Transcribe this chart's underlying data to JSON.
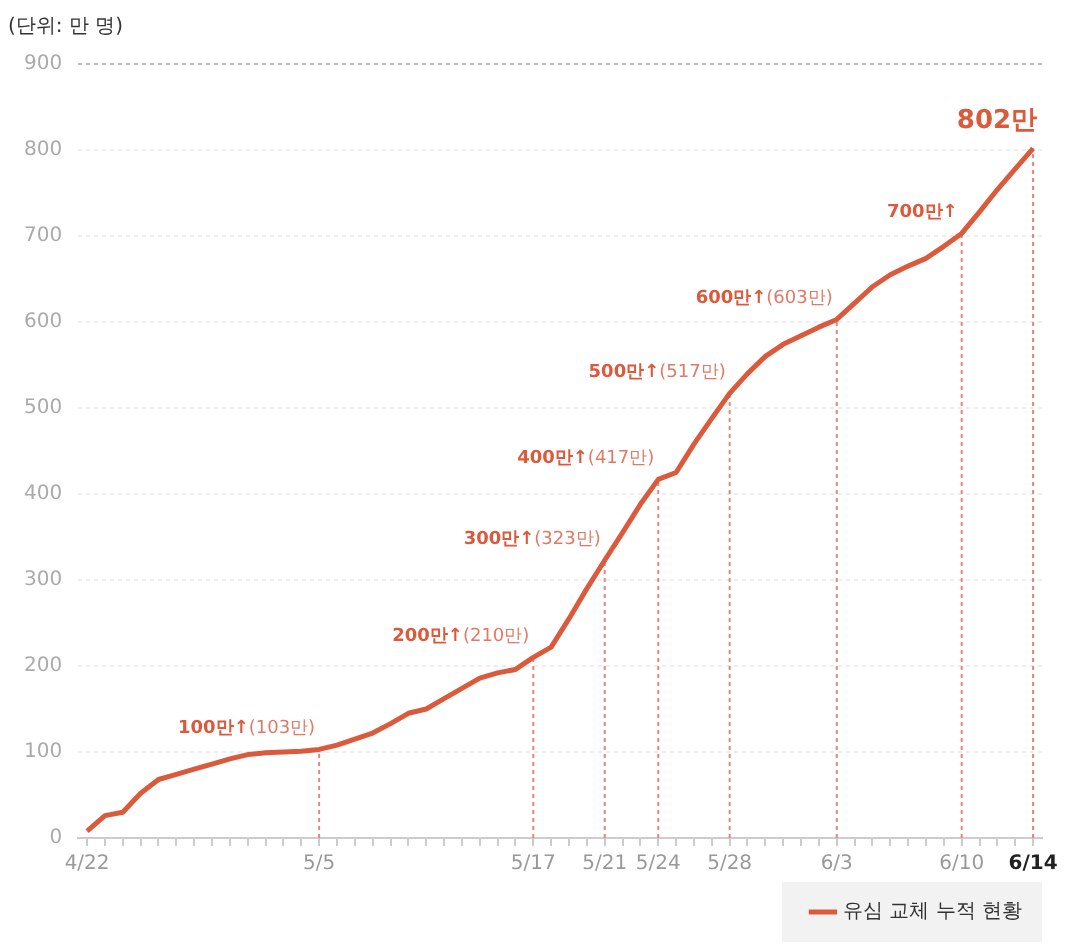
{
  "chart_data": {
    "type": "line",
    "ylabel": "(단위: 만 명)",
    "categories": [
      "4/22",
      null,
      null,
      null,
      null,
      null,
      null,
      null,
      null,
      null,
      null,
      null,
      null,
      "5/5",
      null,
      null,
      null,
      null,
      null,
      null,
      null,
      null,
      null,
      null,
      null,
      "5/17",
      null,
      null,
      null,
      "5/21",
      null,
      null,
      "5/24",
      null,
      null,
      null,
      "5/28",
      null,
      null,
      null,
      null,
      null,
      "6/3",
      null,
      null,
      null,
      null,
      null,
      null,
      "6/10",
      null,
      null,
      null,
      "6/14"
    ],
    "series": [
      {
        "name": "유심 교체 누적 현황",
        "color": "#dc5a3c",
        "values": [
          8,
          26,
          30,
          52,
          68,
          74,
          80,
          86,
          92,
          97,
          99,
          100,
          101,
          103,
          108,
          115,
          122,
          133,
          145,
          150,
          162,
          174,
          186,
          192,
          196,
          210,
          222,
          255,
          290,
          323,
          355,
          388,
          417,
          425,
          458,
          488,
          517,
          540,
          560,
          574,
          584,
          594,
          603,
          622,
          641,
          655,
          665,
          674,
          688,
          703,
          728,
          754,
          778,
          802
        ]
      }
    ],
    "ylim": [
      0,
      900
    ],
    "yticks": [
      0,
      100,
      200,
      300,
      400,
      500,
      600,
      700,
      800,
      900
    ],
    "grid": "y",
    "legend": "bottom right",
    "marker": "none",
    "line_style": "solid",
    "ref_lines": [
      {
        "axis": "x",
        "value": "5/5",
        "color": "#e8857a",
        "line_style": "dotted"
      },
      {
        "axis": "x",
        "value": "5/17",
        "color": "#e8857a",
        "line_style": "dotted"
      },
      {
        "axis": "x",
        "value": "5/21",
        "color": "#e8857a",
        "line_style": "dotted"
      },
      {
        "axis": "x",
        "value": "5/24",
        "color": "#e8857a",
        "line_style": "dotted"
      },
      {
        "axis": "x",
        "value": "5/28",
        "color": "#e8857a",
        "line_style": "dotted"
      },
      {
        "axis": "x",
        "value": "6/3",
        "color": "#e8857a",
        "line_style": "dotted"
      },
      {
        "axis": "x",
        "value": "6/10",
        "color": "#e8857a",
        "line_style": "dotted"
      },
      {
        "axis": "x",
        "value": "6/14",
        "color": "#e8857a",
        "line_style": "dotted"
      }
    ],
    "annotations": [
      {
        "text": "100만↑(103만)",
        "x": "5/5",
        "y": 103
      },
      {
        "text": "200만↑(210만)",
        "x": "5/17",
        "y": 210
      },
      {
        "text": "300만↑(323만)",
        "x": "5/21",
        "y": 323
      },
      {
        "text": "400만↑(417만)",
        "x": "5/24",
        "y": 417
      },
      {
        "text": "500만↑(517만)",
        "x": "5/28",
        "y": 517
      },
      {
        "text": "600만↑(603만)",
        "x": "6/3",
        "y": 603
      },
      {
        "text": "700만↑",
        "x": "6/10",
        "y": 703
      },
      {
        "text": "802만",
        "x": "6/14",
        "y": 802
      }
    ]
  }
}
